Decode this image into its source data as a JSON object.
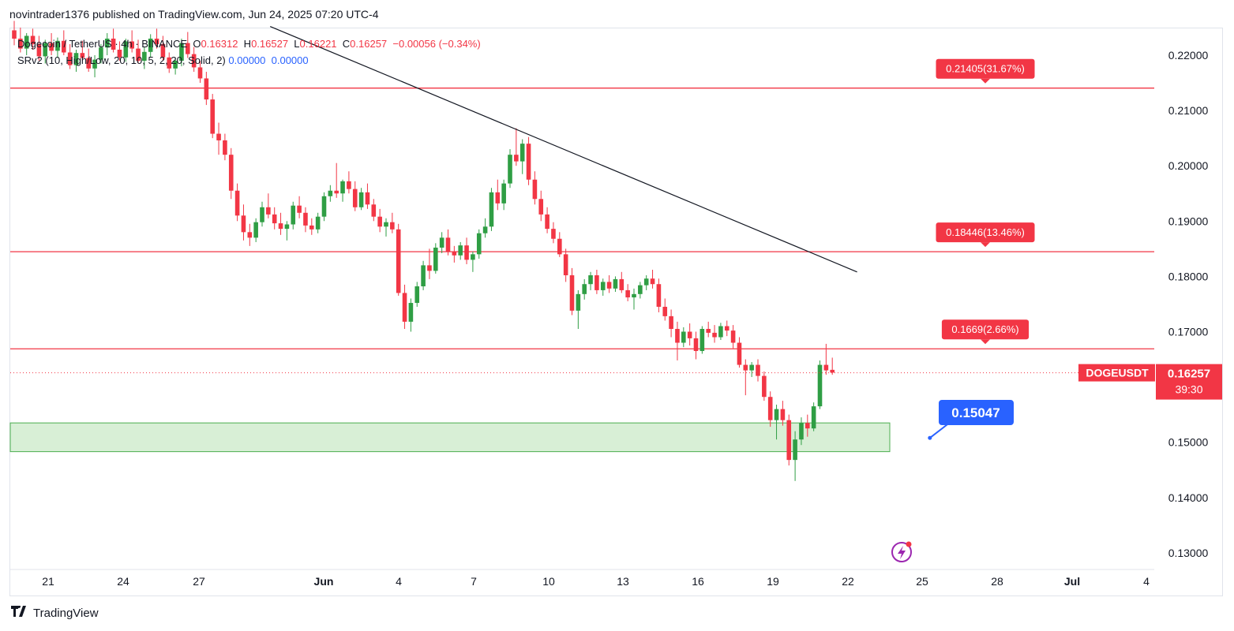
{
  "header": {
    "text": "novintrader1376 published on TradingView.com, Jun 24, 2025 07:20 UTC-4"
  },
  "legend": {
    "symbol": "Dogecoin / TetherUS · 4h · BINANCE",
    "o_label": "O",
    "o_value": "0.16312",
    "h_label": "H",
    "h_value": "0.16527",
    "l_label": "L",
    "l_value": "0.16221",
    "c_label": "C",
    "c_value": "0.16257",
    "change": "−0.00056 (−0.34%)",
    "indicator": "SRv2 (10, High/Low, 20, 10, 5, 2, 20, Solid, 2)",
    "indicator_v1": "0.00000",
    "indicator_v2": "0.00000"
  },
  "footer": {
    "brand": "TradingView",
    "logo_icon": "tradingview-logo-icon"
  },
  "colors": {
    "up": "#089981",
    "down": "#f23645",
    "up_body": "#2f9e44",
    "level": "#f23645",
    "zone_fill": "#d8efd6",
    "zone_stroke": "#4caf50",
    "blue": "#2962ff"
  },
  "chart_data": {
    "type": "candlestick",
    "symbol": "DOGEUSDT",
    "timeframe": "4h",
    "ylim": [
      0.125,
      0.225
    ],
    "y_ticks": [
      "0.22000",
      "0.21000",
      "0.20000",
      "0.19000",
      "0.18000",
      "0.17000",
      "0.16000",
      "0.15000",
      "0.14000",
      "0.13000"
    ],
    "x_ticks": [
      "21",
      "24",
      "27",
      "Jun",
      "4",
      "7",
      "10",
      "13",
      "16",
      "19",
      "22",
      "25",
      "28",
      "Jul",
      "4"
    ],
    "grid": false,
    "price_label": {
      "symbol": "DOGEUSDT",
      "price": "0.16257",
      "countdown": "39:30",
      "value": 0.16257
    },
    "levels": [
      {
        "value": 0.21405,
        "label": "0.21405(31.67%)"
      },
      {
        "value": 0.18446,
        "label": "0.18446(13.46%)"
      },
      {
        "value": 0.1669,
        "label": "0.1669(2.66%)"
      }
    ],
    "support_zone": {
      "from": 0.1483,
      "to": 0.1535
    },
    "trendline": {
      "from_date": "May 29",
      "from_value": 0.2252,
      "to_date": "Jun 23",
      "to_value": 0.1808
    },
    "callout": {
      "label": "0.15047",
      "value": 0.1505,
      "date": "Jun 25"
    },
    "series": [
      {
        "values": [
          [
            0.2245,
            0.2262,
            0.2218,
            0.223
          ],
          [
            0.223,
            0.225,
            0.2205,
            0.2212
          ],
          [
            0.2212,
            0.224,
            0.22,
            0.2235
          ],
          [
            0.2235,
            0.2248,
            0.221,
            0.222
          ],
          [
            0.222,
            0.2235,
            0.219,
            0.2198
          ],
          [
            0.2198,
            0.2228,
            0.2185,
            0.2222
          ],
          [
            0.2222,
            0.224,
            0.22,
            0.2208
          ],
          [
            0.2208,
            0.2232,
            0.2195,
            0.2226
          ],
          [
            0.2226,
            0.2245,
            0.22,
            0.2205
          ],
          [
            0.2205,
            0.222,
            0.2175,
            0.2182
          ],
          [
            0.2182,
            0.221,
            0.217,
            0.2204
          ],
          [
            0.2204,
            0.2226,
            0.219,
            0.2195
          ],
          [
            0.2195,
            0.2212,
            0.217,
            0.2176
          ],
          [
            0.2176,
            0.22,
            0.216,
            0.2192
          ],
          [
            0.2192,
            0.222,
            0.2185,
            0.2214
          ],
          [
            0.2214,
            0.224,
            0.22,
            0.223
          ],
          [
            0.223,
            0.2248,
            0.2205,
            0.221
          ],
          [
            0.221,
            0.2225,
            0.219,
            0.2196
          ],
          [
            0.2196,
            0.223,
            0.2188,
            0.2225
          ],
          [
            0.2225,
            0.2245,
            0.2205,
            0.2212
          ],
          [
            0.2212,
            0.2228,
            0.2185,
            0.219
          ],
          [
            0.219,
            0.2215,
            0.2175,
            0.2206
          ],
          [
            0.2206,
            0.2238,
            0.2196,
            0.223
          ],
          [
            0.223,
            0.2248,
            0.2212,
            0.222
          ],
          [
            0.222,
            0.2235,
            0.219,
            0.2196
          ],
          [
            0.2196,
            0.2205,
            0.2168,
            0.2176
          ],
          [
            0.2176,
            0.2196,
            0.2165,
            0.219
          ],
          [
            0.219,
            0.223,
            0.218,
            0.2222
          ],
          [
            0.2222,
            0.2242,
            0.2195,
            0.2202
          ],
          [
            0.2202,
            0.2215,
            0.217,
            0.2178
          ],
          [
            0.2178,
            0.219,
            0.215,
            0.2158
          ],
          [
            0.2158,
            0.217,
            0.211,
            0.212
          ],
          [
            0.212,
            0.213,
            0.205,
            0.2058
          ],
          [
            0.2058,
            0.2078,
            0.202,
            0.2046
          ],
          [
            0.2046,
            0.2058,
            0.201,
            0.202
          ],
          [
            0.202,
            0.2032,
            0.194,
            0.1955
          ],
          [
            0.1955,
            0.1968,
            0.19,
            0.191
          ],
          [
            0.191,
            0.193,
            0.1865,
            0.188
          ],
          [
            0.188,
            0.1895,
            0.1855,
            0.187
          ],
          [
            0.187,
            0.1905,
            0.1862,
            0.1898
          ],
          [
            0.1898,
            0.1935,
            0.189,
            0.1925
          ],
          [
            0.1925,
            0.195,
            0.1905,
            0.1912
          ],
          [
            0.1912,
            0.1925,
            0.1885,
            0.1896
          ],
          [
            0.1896,
            0.1915,
            0.1875,
            0.1886
          ],
          [
            0.1886,
            0.19,
            0.1865,
            0.1894
          ],
          [
            0.1894,
            0.1935,
            0.1885,
            0.1928
          ],
          [
            0.1928,
            0.1945,
            0.1905,
            0.1915
          ],
          [
            0.1915,
            0.1925,
            0.188,
            0.1892
          ],
          [
            0.1892,
            0.1905,
            0.1875,
            0.1885
          ],
          [
            0.1885,
            0.1915,
            0.1878,
            0.1908
          ],
          [
            0.1908,
            0.1952,
            0.19,
            0.1945
          ],
          [
            0.1945,
            0.1965,
            0.1935,
            0.1955
          ],
          [
            0.1955,
            0.2005,
            0.1942,
            0.195
          ],
          [
            0.195,
            0.1975,
            0.1935,
            0.1972
          ],
          [
            0.1972,
            0.199,
            0.195,
            0.1958
          ],
          [
            0.1958,
            0.1972,
            0.1918,
            0.1925
          ],
          [
            0.1925,
            0.196,
            0.192,
            0.1952
          ],
          [
            0.1952,
            0.1968,
            0.1922,
            0.193
          ],
          [
            0.193,
            0.194,
            0.19,
            0.1908
          ],
          [
            0.1908,
            0.1922,
            0.188,
            0.189
          ],
          [
            0.189,
            0.1905,
            0.1872,
            0.1898
          ],
          [
            0.1898,
            0.1915,
            0.1878,
            0.1885
          ],
          [
            0.1885,
            0.1895,
            0.1765,
            0.177
          ],
          [
            0.177,
            0.1785,
            0.1705,
            0.1718
          ],
          [
            0.1718,
            0.176,
            0.17,
            0.1752
          ],
          [
            0.1752,
            0.179,
            0.1745,
            0.1782
          ],
          [
            0.1782,
            0.1828,
            0.1775,
            0.182
          ],
          [
            0.182,
            0.185,
            0.1795,
            0.181
          ],
          [
            0.181,
            0.186,
            0.1805,
            0.1852
          ],
          [
            0.1852,
            0.188,
            0.1842,
            0.187
          ],
          [
            0.187,
            0.1885,
            0.1838,
            0.1845
          ],
          [
            0.1845,
            0.1855,
            0.1825,
            0.1838
          ],
          [
            0.1838,
            0.1862,
            0.183,
            0.1856
          ],
          [
            0.1856,
            0.187,
            0.1822,
            0.183
          ],
          [
            0.183,
            0.1845,
            0.1808,
            0.184
          ],
          [
            0.184,
            0.1885,
            0.1832,
            0.1878
          ],
          [
            0.1878,
            0.1905,
            0.187,
            0.189
          ],
          [
            0.189,
            0.196,
            0.1882,
            0.1952
          ],
          [
            0.1952,
            0.1975,
            0.192,
            0.1932
          ],
          [
            0.1932,
            0.1975,
            0.192,
            0.1968
          ],
          [
            0.1968,
            0.203,
            0.196,
            0.202
          ],
          [
            0.202,
            0.2068,
            0.2,
            0.2008
          ],
          [
            0.2008,
            0.2048,
            0.1985,
            0.204
          ],
          [
            0.204,
            0.2052,
            0.1965,
            0.1975
          ],
          [
            0.1975,
            0.199,
            0.193,
            0.194
          ],
          [
            0.194,
            0.1955,
            0.19,
            0.1912
          ],
          [
            0.1912,
            0.1925,
            0.1878,
            0.1886
          ],
          [
            0.1886,
            0.1898,
            0.186,
            0.1868
          ],
          [
            0.1868,
            0.188,
            0.1835,
            0.184
          ],
          [
            0.184,
            0.185,
            0.179,
            0.1802
          ],
          [
            0.1802,
            0.1815,
            0.173,
            0.1738
          ],
          [
            0.1738,
            0.1775,
            0.1705,
            0.1768
          ],
          [
            0.1768,
            0.1795,
            0.1758,
            0.1786
          ],
          [
            0.1786,
            0.1808,
            0.1775,
            0.1802
          ],
          [
            0.1802,
            0.1812,
            0.1768,
            0.1775
          ],
          [
            0.1775,
            0.1796,
            0.1765,
            0.179
          ],
          [
            0.179,
            0.1802,
            0.177,
            0.1778
          ],
          [
            0.1778,
            0.18,
            0.1772,
            0.1795
          ],
          [
            0.1795,
            0.1808,
            0.177,
            0.1775
          ],
          [
            0.1775,
            0.1786,
            0.1755,
            0.1762
          ],
          [
            0.1762,
            0.1778,
            0.174,
            0.1768
          ],
          [
            0.1768,
            0.179,
            0.176,
            0.1784
          ],
          [
            0.1784,
            0.1802,
            0.1775,
            0.1796
          ],
          [
            0.1796,
            0.1812,
            0.1778,
            0.1786
          ],
          [
            0.1786,
            0.1796,
            0.1735,
            0.1745
          ],
          [
            0.1745,
            0.176,
            0.172,
            0.1728
          ],
          [
            0.1728,
            0.174,
            0.169,
            0.1705
          ],
          [
            0.1705,
            0.1718,
            0.1648,
            0.168
          ],
          [
            0.168,
            0.1708,
            0.1672,
            0.17
          ],
          [
            0.17,
            0.1715,
            0.1675,
            0.1688
          ],
          [
            0.1688,
            0.17,
            0.165,
            0.1665
          ],
          [
            0.1665,
            0.171,
            0.166,
            0.1705
          ],
          [
            0.1705,
            0.1718,
            0.169,
            0.1698
          ],
          [
            0.1698,
            0.1712,
            0.168,
            0.169
          ],
          [
            0.169,
            0.1716,
            0.1685,
            0.171
          ],
          [
            0.171,
            0.172,
            0.1692,
            0.1702
          ],
          [
            0.1702,
            0.1712,
            0.167,
            0.168
          ],
          [
            0.168,
            0.169,
            0.1635,
            0.164
          ],
          [
            0.164,
            0.165,
            0.1585,
            0.163
          ],
          [
            0.163,
            0.1645,
            0.1618,
            0.164
          ],
          [
            0.164,
            0.165,
            0.161,
            0.162
          ],
          [
            0.162,
            0.1628,
            0.1575,
            0.1582
          ],
          [
            0.1582,
            0.1592,
            0.1528,
            0.154
          ],
          [
            0.154,
            0.1568,
            0.1505,
            0.156
          ],
          [
            0.156,
            0.1575,
            0.153,
            0.154
          ],
          [
            0.154,
            0.155,
            0.1458,
            0.1468
          ],
          [
            0.1468,
            0.152,
            0.143,
            0.1505
          ],
          [
            0.1505,
            0.1545,
            0.1495,
            0.1535
          ],
          [
            0.1535,
            0.155,
            0.151,
            0.1525
          ],
          [
            0.1525,
            0.1572,
            0.152,
            0.1565
          ],
          [
            0.1565,
            0.1648,
            0.156,
            0.164
          ],
          [
            0.164,
            0.1678,
            0.1622,
            0.163
          ],
          [
            0.1631,
            0.1653,
            0.1622,
            0.1626
          ]
        ]
      }
    ]
  }
}
